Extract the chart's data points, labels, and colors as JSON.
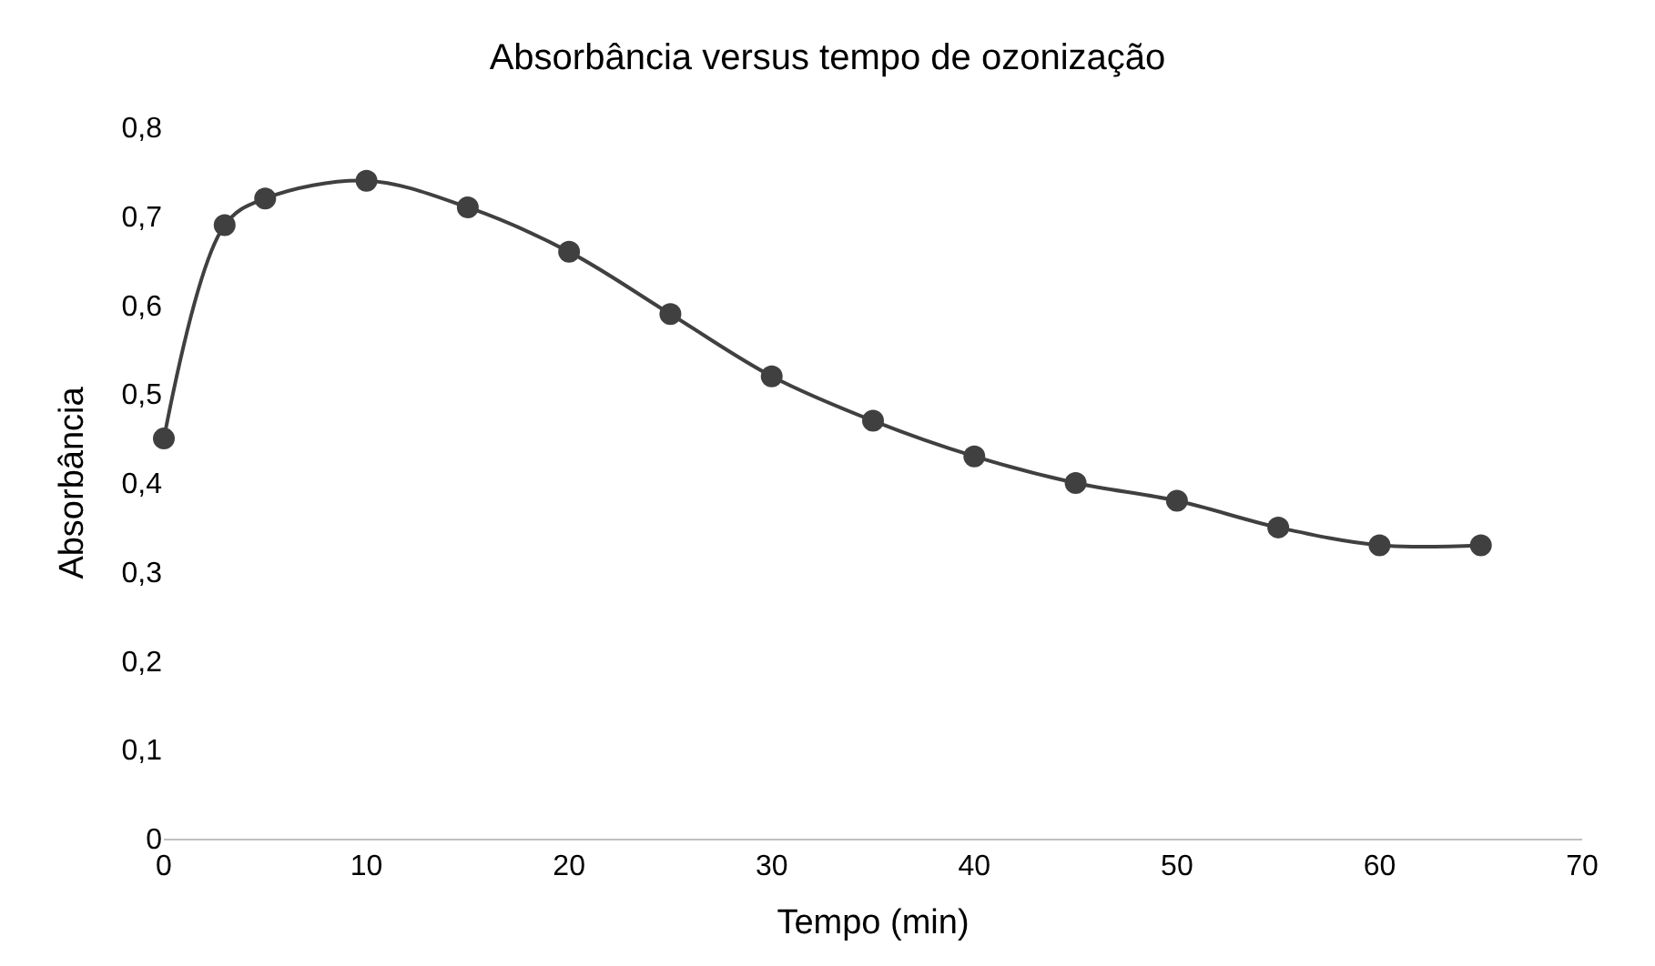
{
  "chart_data": {
    "type": "line",
    "title": "Absorbância versus tempo de ozonização",
    "xlabel": "Tempo (min)",
    "ylabel": "Absorbância",
    "x": [
      0,
      3,
      5,
      10,
      15,
      20,
      25,
      30,
      35,
      40,
      45,
      50,
      55,
      60,
      65
    ],
    "series": [
      {
        "color": "#404040",
        "values": [
          0.45,
          0.69,
          0.72,
          0.74,
          0.71,
          0.66,
          0.59,
          0.52,
          0.47,
          0.43,
          0.4,
          0.38,
          0.35,
          0.33,
          0.33
        ]
      }
    ],
    "xlim": [
      0,
      70
    ],
    "xticks": [
      0,
      10,
      20,
      30,
      40,
      50,
      60,
      70
    ],
    "ylim": [
      0,
      0.8
    ],
    "yticks": [
      0,
      {
        "value": 0.1,
        "label": "0,1"
      },
      {
        "value": 0.2,
        "label": "0,2"
      },
      {
        "value": 0.3,
        "label": "0,3"
      },
      {
        "value": 0.4,
        "label": "0,4"
      },
      {
        "value": 0.5,
        "label": "0,5"
      },
      {
        "value": 0.6,
        "label": "0,6"
      },
      {
        "value": 0.7,
        "label": "0,7"
      },
      {
        "value": 0.8,
        "label": "0,8"
      }
    ],
    "marker": "circle",
    "line_style": "solid"
  }
}
